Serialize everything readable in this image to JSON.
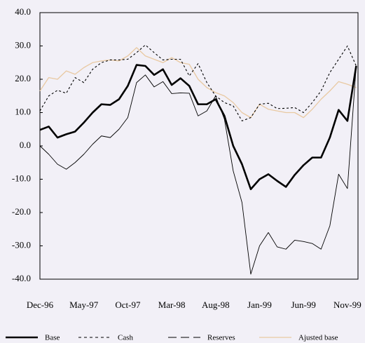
{
  "chart_data": {
    "type": "line",
    "categories": [
      "Dec-96",
      null,
      null,
      null,
      null,
      "May-97",
      null,
      null,
      null,
      null,
      "Oct-97",
      null,
      null,
      null,
      null,
      "Mar-98",
      null,
      null,
      null,
      null,
      "Aug-98",
      null,
      null,
      null,
      null,
      "Jan-99",
      null,
      null,
      null,
      null,
      "Jun-99",
      null,
      null,
      null,
      null,
      "Nov-99",
      null
    ],
    "ylim": [
      -40,
      40
    ],
    "yticks": [
      {
        "value": -40,
        "label": "-40.0"
      },
      {
        "value": -30,
        "label": "-30.0"
      },
      {
        "value": -20,
        "label": "-20.0"
      },
      {
        "value": -10,
        "label": "-10.0"
      },
      {
        "value": 0,
        "label": "0.0"
      },
      {
        "value": 10,
        "label": "10.0"
      },
      {
        "value": 20,
        "label": "20.0"
      },
      {
        "value": 30,
        "label": "30.0"
      },
      {
        "value": 40,
        "label": "40.0"
      }
    ],
    "legend": "bottom",
    "series": [
      {
        "name": "Base",
        "color": "#000000",
        "style": "thick",
        "values": [
          4.8,
          5.8,
          2.5,
          3.5,
          4.3,
          7,
          10,
          12.5,
          12.3,
          14,
          18,
          24.3,
          24,
          21.3,
          23,
          18.3,
          20.3,
          18,
          12.5,
          12.5,
          14,
          9,
          0,
          -5.5,
          -13,
          -10,
          -8.5,
          -10.5,
          -12.3,
          -8.7,
          -5.8,
          -3.5,
          -3.5,
          2.5,
          10.8,
          7.5,
          24
        ]
      },
      {
        "name": "Cash",
        "color": "#000000",
        "style": "dashed",
        "values": [
          10.5,
          15,
          16.7,
          15.8,
          20.5,
          19,
          23,
          25,
          25.8,
          25.8,
          26,
          28,
          30.3,
          28,
          25.8,
          26,
          26,
          21,
          24.7,
          19,
          15,
          13,
          12,
          7.5,
          8.5,
          12.5,
          12.8,
          11.2,
          11.3,
          11.5,
          10,
          13,
          16.5,
          22,
          26,
          30,
          24
        ]
      },
      {
        "name": "Reserves",
        "color": "#000000",
        "style": "thin",
        "values": [
          0,
          -2.5,
          -5.5,
          -7,
          -5,
          -2.5,
          0.5,
          3,
          2.5,
          5,
          8.5,
          19,
          21.3,
          17.7,
          19.3,
          15.7,
          15.9,
          15.8,
          9,
          10.5,
          15,
          8,
          -7.5,
          -17,
          -38.5,
          -30,
          -26,
          -30.3,
          -31,
          -28.3,
          -28.7,
          -29.3,
          -31,
          -24,
          -8.5,
          -12.8,
          24
        ]
      },
      {
        "name": "Ajusted base",
        "color": "#e9c9a2",
        "style": "solid",
        "values": [
          16.5,
          20.5,
          20,
          22.5,
          21.5,
          23.5,
          25,
          25.5,
          25.8,
          25.5,
          27,
          29.5,
          27,
          26,
          25,
          26.5,
          25,
          24.5,
          20,
          17.5,
          16,
          15,
          13,
          10,
          8.5,
          12.5,
          11,
          10.5,
          10,
          10,
          8.5,
          11,
          14,
          16.5,
          19.3,
          18.5,
          17.5
        ]
      }
    ]
  }
}
